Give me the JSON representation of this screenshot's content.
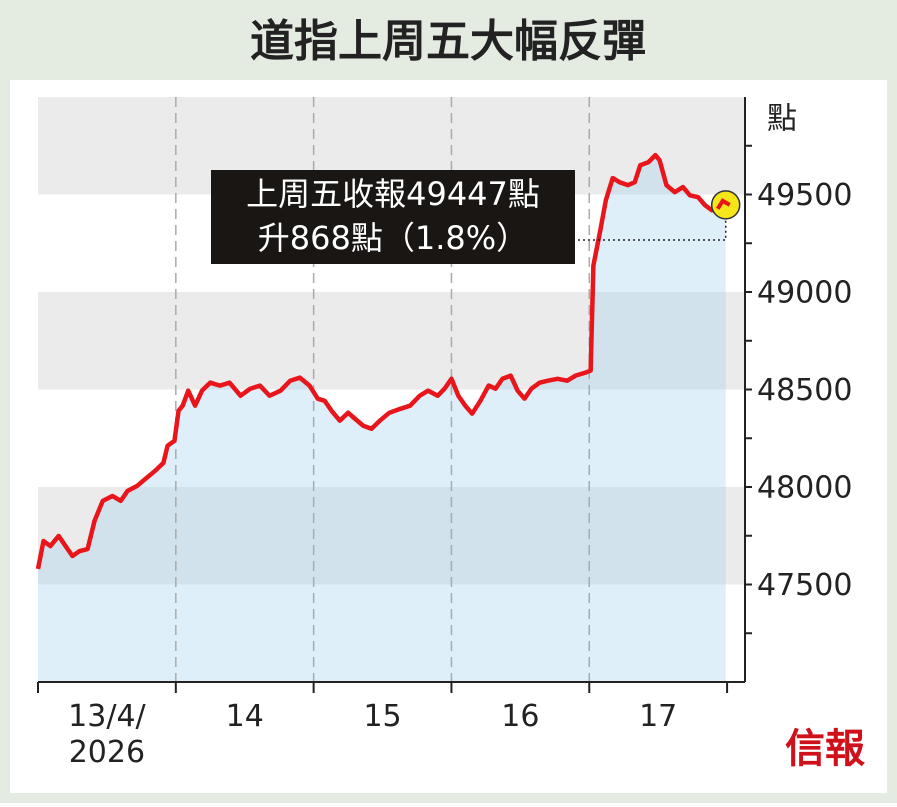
{
  "chart_data": {
    "type": "line",
    "title": "道指上周五大幅反彈",
    "y_unit": "點",
    "annotation": [
      "上周五收報49447點",
      "升868點（1.8%）"
    ],
    "logo": "信報",
    "categories": [
      "13/4/\n2026",
      "14",
      "15",
      "16",
      "17"
    ],
    "xlim": [
      0,
      5.13
    ],
    "xticks": [
      0,
      1,
      2,
      3,
      4,
      5
    ],
    "ylim": [
      47000,
      50000
    ],
    "yticks": [
      47500,
      48000,
      48500,
      49000,
      49500
    ],
    "y_minor_ticks": [
      47250,
      47750,
      48250,
      48750,
      49250,
      49750
    ],
    "bands": [
      [
        47500,
        48000
      ],
      [
        48500,
        49000
      ],
      [
        49500,
        50000
      ]
    ],
    "series": [
      {
        "color": "#e8151b",
        "x": [
          0,
          0.04,
          0.09,
          0.15,
          0.2,
          0.25,
          0.3,
          0.36,
          0.41,
          0.47,
          0.54,
          0.6,
          0.65,
          0.72,
          0.78,
          0.85,
          0.91,
          0.94,
          0.99,
          1.02,
          1.05,
          1.09,
          1.14,
          1.19,
          1.25,
          1.32,
          1.39,
          1.47,
          1.54,
          1.61,
          1.68,
          1.76,
          1.83,
          1.9,
          1.97,
          2.03,
          2.08,
          2.13,
          2.19,
          2.25,
          2.3,
          2.36,
          2.42,
          2.48,
          2.55,
          2.63,
          2.7,
          2.77,
          2.83,
          2.9,
          2.95,
          3.0,
          3.05,
          3.1,
          3.15,
          3.21,
          3.27,
          3.32,
          3.37,
          3.43,
          3.48,
          3.53,
          3.58,
          3.64,
          3.7,
          3.77,
          3.84,
          3.9,
          3.97,
          4.01,
          4.03,
          4.08,
          4.12,
          4.17,
          4.22,
          4.28,
          4.33,
          4.37,
          4.43,
          4.48,
          4.51,
          4.56,
          4.62,
          4.68,
          4.73,
          4.79,
          4.84,
          4.89,
          4.93,
          4.96,
          4.99
        ],
        "values": [
          47580,
          47723,
          47697,
          47749,
          47697,
          47646,
          47671,
          47682,
          47826,
          47929,
          47954,
          47929,
          47980,
          48006,
          48042,
          48083,
          48124,
          48211,
          48237,
          48391,
          48417,
          48494,
          48417,
          48494,
          48535,
          48520,
          48535,
          48468,
          48504,
          48520,
          48468,
          48494,
          48545,
          48561,
          48520,
          48453,
          48442,
          48391,
          48340,
          48381,
          48350,
          48314,
          48299,
          48340,
          48381,
          48401,
          48417,
          48468,
          48494,
          48468,
          48504,
          48555,
          48468,
          48417,
          48376,
          48442,
          48520,
          48504,
          48555,
          48571,
          48494,
          48453,
          48504,
          48535,
          48545,
          48555,
          48545,
          48571,
          48586,
          48597,
          49136,
          49316,
          49470,
          49584,
          49563,
          49548,
          49563,
          49650,
          49666,
          49702,
          49676,
          49548,
          49512,
          49538,
          49496,
          49486,
          49445,
          49419,
          49455,
          49445,
          49447
        ]
      }
    ]
  }
}
